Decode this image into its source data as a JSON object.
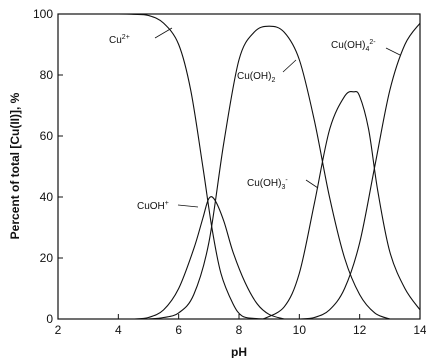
{
  "chart_data": {
    "type": "line",
    "title": "",
    "xlabel": "pH",
    "ylabel": "Percent of total [Cu(II)], %",
    "xlim": [
      2,
      14
    ],
    "ylim": [
      0,
      100
    ],
    "xticks": [
      2,
      4,
      6,
      8,
      10,
      12,
      14
    ],
    "yticks": [
      0,
      20,
      40,
      60,
      80,
      100
    ],
    "grid": false,
    "legend": "none",
    "series": [
      {
        "name": "Cu2+",
        "x": [
          2,
          4,
          4.5,
          5,
          5.5,
          6,
          6.4,
          6.8,
          7.1,
          7.4,
          7.8,
          8.1,
          8.5,
          9
        ],
        "y": [
          100,
          100,
          99.9,
          99.5,
          97,
          90,
          75,
          50,
          30,
          15,
          5,
          1,
          0.2,
          0
        ]
      },
      {
        "name": "CuOH+",
        "x": [
          4.5,
          5,
          5.5,
          6,
          6.5,
          6.8,
          7.0,
          7.2,
          7.5,
          7.8,
          8.2,
          8.6,
          9,
          9.5
        ],
        "y": [
          0,
          0.5,
          3,
          10,
          23,
          33,
          39.5,
          39,
          32,
          22,
          12,
          5,
          1.5,
          0
        ]
      },
      {
        "name": "Cu(OH)2",
        "x": [
          5,
          5.5,
          6,
          6.5,
          7,
          7.5,
          8,
          8.5,
          9,
          9.5,
          10,
          10.5,
          11,
          11.5,
          12,
          12.5,
          13
        ],
        "y": [
          0,
          0.5,
          2,
          8,
          25,
          58,
          85,
          94,
          96,
          94,
          85,
          65,
          40,
          20,
          8,
          2,
          0
        ]
      },
      {
        "name": "Cu(OH)3-",
        "x": [
          8.8,
          9.5,
          10,
          10.5,
          11,
          11.5,
          11.8,
          12,
          12.3,
          12.6,
          13,
          13.5,
          14
        ],
        "y": [
          0,
          4,
          15,
          38,
          62,
          73,
          74.5,
          73,
          62,
          42,
          22,
          10,
          3
        ]
      },
      {
        "name": "Cu(OH)4 2-",
        "x": [
          10,
          10.5,
          11,
          11.5,
          12,
          12.5,
          13,
          13.5,
          14
        ],
        "y": [
          0,
          0.5,
          3,
          10,
          25,
          50,
          75,
          90,
          97
        ]
      }
    ],
    "annotations": [
      {
        "series": "Cu2+",
        "label": "Cu",
        "sup": "2+",
        "sub": "",
        "sup2": ""
      },
      {
        "series": "Cu(OH)2",
        "label": "Cu(OH)",
        "sup": "",
        "sub": "2",
        "sup2": ""
      },
      {
        "series": "Cu(OH)4 2-",
        "label": "Cu(OH)",
        "sup": "",
        "sub": "4",
        "sup2": "2-"
      },
      {
        "series": "Cu(OH)3-",
        "label": "Cu(OH)",
        "sup": "",
        "sub": "3",
        "sup2": "-"
      },
      {
        "series": "CuOH+",
        "label": "CuOH",
        "sup": "+",
        "sub": "",
        "sup2": ""
      }
    ]
  }
}
